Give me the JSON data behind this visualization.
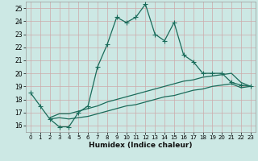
{
  "xlabel": "Humidex (Indice chaleur)",
  "bg_color": "#cce8e4",
  "grid_color": "#aacccc",
  "line_color": "#1a6b5a",
  "xlim": [
    -0.5,
    23.5
  ],
  "ylim": [
    15.5,
    25.5
  ],
  "xticks": [
    0,
    1,
    2,
    3,
    4,
    5,
    6,
    7,
    8,
    9,
    10,
    11,
    12,
    13,
    14,
    15,
    16,
    17,
    18,
    19,
    20,
    21,
    22,
    23
  ],
  "yticks": [
    16,
    17,
    18,
    19,
    20,
    21,
    22,
    23,
    24,
    25
  ],
  "main_x": [
    0,
    1,
    2,
    3,
    4,
    5,
    6,
    7,
    8,
    9,
    10,
    11,
    12,
    13,
    14,
    15,
    16,
    17,
    18,
    19,
    20,
    21,
    22,
    23
  ],
  "main_y": [
    18.5,
    17.5,
    16.5,
    15.9,
    15.9,
    17.0,
    17.5,
    20.5,
    22.2,
    24.3,
    23.9,
    24.3,
    25.3,
    23.0,
    22.5,
    23.9,
    21.4,
    20.9,
    20.0,
    20.0,
    20.0,
    19.3,
    19.1,
    19.0
  ],
  "line2_x": [
    2,
    3,
    4,
    5,
    6,
    7,
    8,
    9,
    10,
    11,
    12,
    13,
    14,
    15,
    16,
    17,
    18,
    19,
    20,
    21,
    22,
    23
  ],
  "line2_y": [
    16.6,
    16.9,
    16.9,
    17.1,
    17.3,
    17.5,
    17.8,
    18.0,
    18.2,
    18.4,
    18.6,
    18.8,
    19.0,
    19.2,
    19.4,
    19.5,
    19.7,
    19.8,
    19.9,
    20.0,
    19.3,
    19.0
  ],
  "line3_x": [
    2,
    3,
    4,
    5,
    6,
    7,
    8,
    9,
    10,
    11,
    12,
    13,
    14,
    15,
    16,
    17,
    18,
    19,
    20,
    21,
    22,
    23
  ],
  "line3_y": [
    16.5,
    16.6,
    16.5,
    16.6,
    16.7,
    16.9,
    17.1,
    17.3,
    17.5,
    17.6,
    17.8,
    18.0,
    18.2,
    18.3,
    18.5,
    18.7,
    18.8,
    19.0,
    19.1,
    19.2,
    18.9,
    19.0
  ]
}
